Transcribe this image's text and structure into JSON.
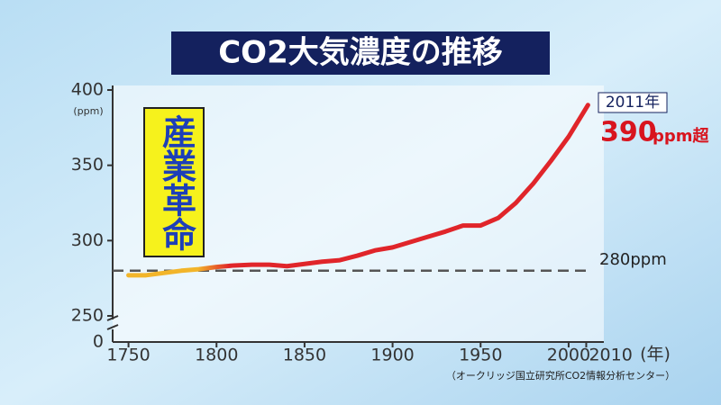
{
  "chart_data": {
    "type": "line",
    "title": "CO2大気濃度の推移",
    "y_unit": "(ppm)",
    "x_unit": "(年)",
    "source": "（オークリッジ国立研究所CO2情報分析センター）",
    "x": [
      1750,
      1760,
      1770,
      1780,
      1790,
      1800,
      1810,
      1820,
      1830,
      1840,
      1850,
      1860,
      1870,
      1880,
      1890,
      1900,
      1910,
      1920,
      1930,
      1940,
      1950,
      1960,
      1970,
      1980,
      1990,
      2000,
      2011
    ],
    "values": [
      277,
      277,
      278.5,
      280,
      281,
      282.5,
      283.5,
      284,
      284,
      283,
      284.5,
      286,
      287,
      290,
      293.5,
      295.5,
      299,
      302.5,
      306,
      310,
      310,
      315,
      325,
      338,
      353,
      369,
      390
    ],
    "colors": [
      "#f2b52a",
      "#e0252a"
    ],
    "xlim": [
      1741,
      2020
    ],
    "ylim": [
      250,
      400
    ],
    "xticks": [
      1750,
      1800,
      1850,
      1900,
      1950,
      2000,
      2010
    ],
    "yticks": [
      250,
      300,
      350,
      400
    ],
    "axis_break_tick": 0,
    "reference_line": {
      "value": 280,
      "label": "280ppm"
    },
    "era_label": "産業革命",
    "annotations": [
      "2011年",
      "390",
      "ppm超"
    ]
  }
}
